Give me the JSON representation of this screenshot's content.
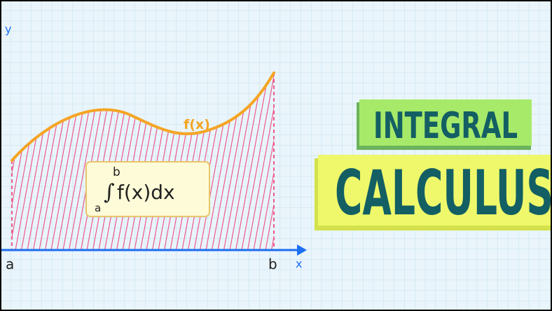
{
  "axes": {
    "y_label": "y",
    "x_label": "x",
    "a_label": "a",
    "b_label": "b"
  },
  "curve": {
    "label": "f(x)"
  },
  "formula": {
    "upper": "b",
    "lower": "a",
    "integral_sign": "∫",
    "expression": "f(x)dx"
  },
  "headline": {
    "line1": "INTEGRAL",
    "line2": "CALCULUS"
  },
  "colors": {
    "background": "#e9f5fb",
    "grid": "#bcd9ea",
    "axis": "#1e6ff0",
    "curve": "#f5a524",
    "curve_label": "#f5a524",
    "hatch": "#ef5a8c",
    "formula_box_fill": "#fefbd8",
    "formula_box_stroke": "#e8c66a",
    "headline_text": "#135f63",
    "line1_fill": "#a7ea6a",
    "line1_shadow": "#6bb35d",
    "line2_fill": "#eef86a",
    "line2_shadow": "#d4e14b"
  },
  "icons": {
    "x_axis_arrow": "arrow-right-icon"
  }
}
